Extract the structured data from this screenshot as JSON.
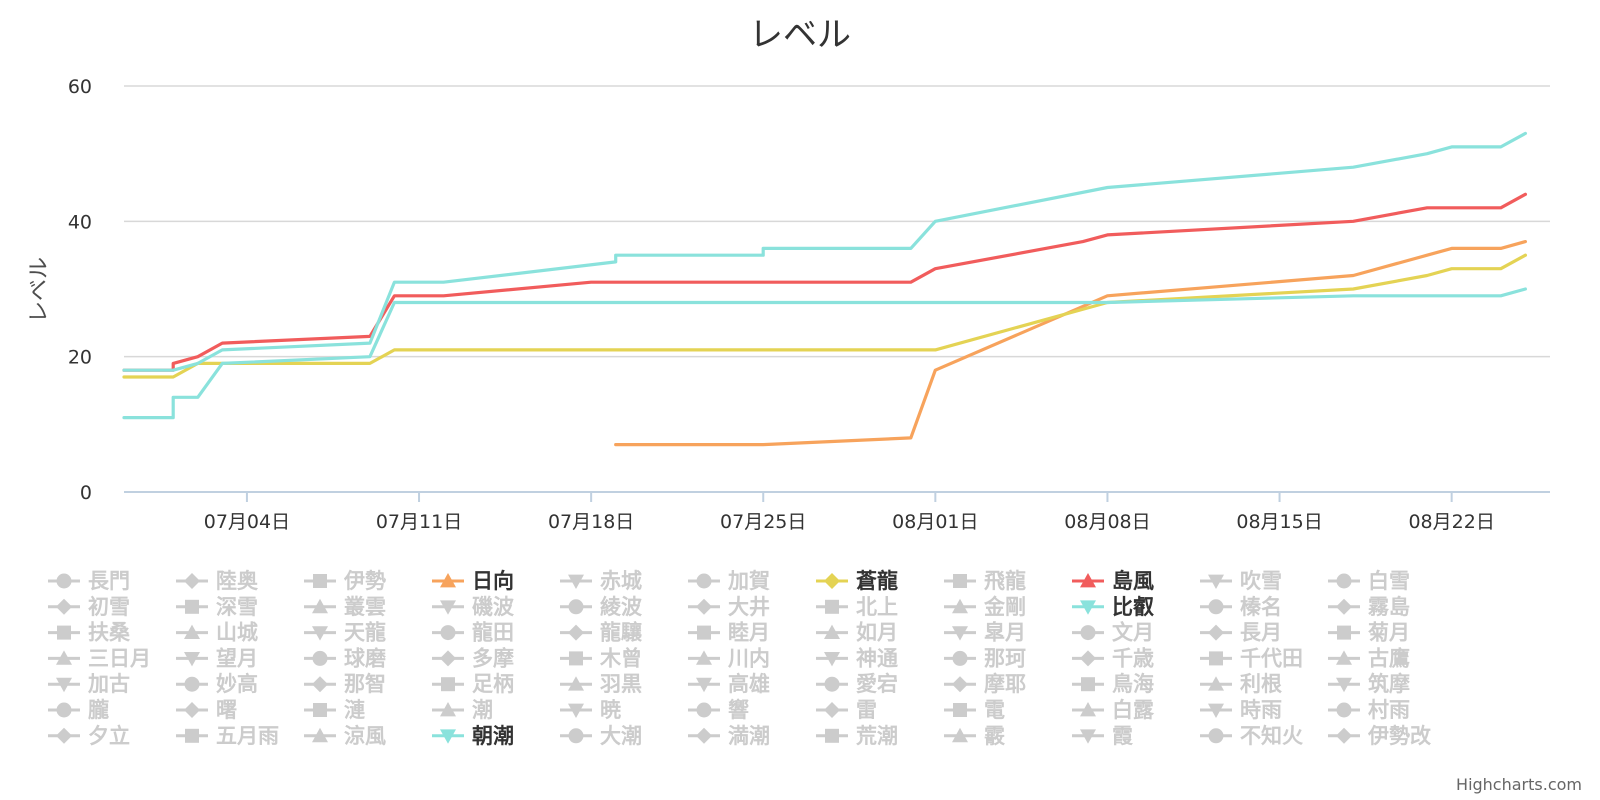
{
  "chart_data": {
    "type": "line",
    "title": "レベル",
    "xlabel": "",
    "ylabel": "レベル",
    "ylim": [
      0,
      60
    ],
    "y_ticks": [
      0,
      20,
      40,
      60
    ],
    "x_range": [
      "2016-06-29",
      "2016-08-26"
    ],
    "x_ticks": [
      {
        "date": "2016-07-04",
        "label": "07月04日"
      },
      {
        "date": "2016-07-11",
        "label": "07月11日"
      },
      {
        "date": "2016-07-18",
        "label": "07月18日"
      },
      {
        "date": "2016-07-25",
        "label": "07月25日"
      },
      {
        "date": "2016-08-01",
        "label": "08月01日"
      },
      {
        "date": "2016-08-08",
        "label": "08月08日"
      },
      {
        "date": "2016-08-15",
        "label": "08月15日"
      },
      {
        "date": "2016-08-22",
        "label": "08月22日"
      }
    ],
    "grid": true,
    "legend_position": "bottom",
    "series": [
      {
        "name": "日向",
        "color": "#f7a35c",
        "marker": "triangle",
        "visible": true,
        "points": [
          [
            "2016-07-19",
            7
          ],
          [
            "2016-07-25",
            7
          ],
          [
            "2016-07-31",
            8
          ],
          [
            "2016-08-01",
            18
          ],
          [
            "2016-08-08",
            29
          ],
          [
            "2016-08-18",
            32
          ],
          [
            "2016-08-21",
            35
          ],
          [
            "2016-08-22",
            36
          ],
          [
            "2016-08-24",
            36
          ],
          [
            "2016-08-25",
            37
          ]
        ]
      },
      {
        "name": "蒼龍",
        "color": "#e4d354",
        "marker": "diamond",
        "visible": true,
        "points": [
          [
            "2016-06-29",
            17
          ],
          [
            "2016-07-01",
            17
          ],
          [
            "2016-07-02",
            19
          ],
          [
            "2016-07-09",
            19
          ],
          [
            "2016-07-10",
            21
          ],
          [
            "2016-08-01",
            21
          ],
          [
            "2016-08-08",
            28
          ],
          [
            "2016-08-18",
            30
          ],
          [
            "2016-08-21",
            32
          ],
          [
            "2016-08-22",
            33
          ],
          [
            "2016-08-24",
            33
          ],
          [
            "2016-08-25",
            35
          ]
        ]
      },
      {
        "name": "島風",
        "color": "#f15c5c",
        "marker": "triangle",
        "visible": true,
        "points": [
          [
            "2016-06-29",
            18
          ],
          [
            "2016-07-01",
            18
          ],
          [
            "2016-07-01",
            19
          ],
          [
            "2016-07-02",
            20
          ],
          [
            "2016-07-03",
            22
          ],
          [
            "2016-07-09",
            23
          ],
          [
            "2016-07-10",
            29
          ],
          [
            "2016-07-12",
            29
          ],
          [
            "2016-07-18",
            31
          ],
          [
            "2016-07-31",
            31
          ],
          [
            "2016-08-01",
            33
          ],
          [
            "2016-08-07",
            37
          ],
          [
            "2016-08-08",
            38
          ],
          [
            "2016-08-18",
            40
          ],
          [
            "2016-08-21",
            42
          ],
          [
            "2016-08-24",
            42
          ],
          [
            "2016-08-25",
            44
          ]
        ]
      },
      {
        "name": "比叡",
        "color": "#8ae2dc",
        "marker": "triangle-down",
        "visible": true,
        "points": [
          [
            "2016-06-29",
            18
          ],
          [
            "2016-07-01",
            18
          ],
          [
            "2016-07-02",
            19
          ],
          [
            "2016-07-03",
            21
          ],
          [
            "2016-07-09",
            22
          ],
          [
            "2016-07-10",
            31
          ],
          [
            "2016-07-12",
            31
          ],
          [
            "2016-07-19",
            34
          ],
          [
            "2016-07-19",
            35
          ],
          [
            "2016-07-25",
            35
          ],
          [
            "2016-07-25",
            36
          ],
          [
            "2016-07-31",
            36
          ],
          [
            "2016-08-01",
            40
          ],
          [
            "2016-08-08",
            45
          ],
          [
            "2016-08-18",
            48
          ],
          [
            "2016-08-21",
            50
          ],
          [
            "2016-08-22",
            51
          ],
          [
            "2016-08-24",
            51
          ],
          [
            "2016-08-25",
            53
          ]
        ]
      },
      {
        "name": "朝潮",
        "color": "#8ae2dc",
        "marker": "triangle-down",
        "visible": true,
        "points": [
          [
            "2016-06-29",
            11
          ],
          [
            "2016-07-01",
            11
          ],
          [
            "2016-07-01",
            14
          ],
          [
            "2016-07-02",
            14
          ],
          [
            "2016-07-03",
            19
          ],
          [
            "2016-07-09",
            20
          ],
          [
            "2016-07-10",
            28
          ],
          [
            "2016-08-08",
            28
          ],
          [
            "2016-08-18",
            29
          ],
          [
            "2016-08-24",
            29
          ],
          [
            "2016-08-25",
            30
          ]
        ]
      }
    ]
  },
  "legend_items": [
    {
      "name": "長門",
      "marker": "circle",
      "active": false
    },
    {
      "name": "陸奥",
      "marker": "diamond",
      "active": false
    },
    {
      "name": "伊勢",
      "marker": "square",
      "active": false
    },
    {
      "name": "日向",
      "marker": "triangle",
      "active": true,
      "color": "#f7a35c"
    },
    {
      "name": "赤城",
      "marker": "triangle-down",
      "active": false
    },
    {
      "name": "加賀",
      "marker": "circle",
      "active": false
    },
    {
      "name": "蒼龍",
      "marker": "diamond",
      "active": true,
      "color": "#e4d354"
    },
    {
      "name": "飛龍",
      "marker": "square",
      "active": false
    },
    {
      "name": "島風",
      "marker": "triangle",
      "active": true,
      "color": "#f15c5c"
    },
    {
      "name": "吹雪",
      "marker": "triangle-down",
      "active": false
    },
    {
      "name": "白雪",
      "marker": "circle",
      "active": false
    },
    {
      "name": "初雪",
      "marker": "diamond",
      "active": false
    },
    {
      "name": "深雪",
      "marker": "square",
      "active": false
    },
    {
      "name": "叢雲",
      "marker": "triangle",
      "active": false
    },
    {
      "name": "磯波",
      "marker": "triangle-down",
      "active": false
    },
    {
      "name": "綾波",
      "marker": "circle",
      "active": false
    },
    {
      "name": "大井",
      "marker": "diamond",
      "active": false
    },
    {
      "name": "北上",
      "marker": "square",
      "active": false
    },
    {
      "name": "金剛",
      "marker": "triangle",
      "active": false
    },
    {
      "name": "比叡",
      "marker": "triangle-down",
      "active": true,
      "color": "#8ae2dc"
    },
    {
      "name": "榛名",
      "marker": "circle",
      "active": false
    },
    {
      "name": "霧島",
      "marker": "diamond",
      "active": false
    },
    {
      "name": "扶桑",
      "marker": "square",
      "active": false
    },
    {
      "name": "山城",
      "marker": "triangle",
      "active": false
    },
    {
      "name": "天龍",
      "marker": "triangle-down",
      "active": false
    },
    {
      "name": "龍田",
      "marker": "circle",
      "active": false
    },
    {
      "name": "龍驤",
      "marker": "diamond",
      "active": false
    },
    {
      "name": "睦月",
      "marker": "square",
      "active": false
    },
    {
      "name": "如月",
      "marker": "triangle",
      "active": false
    },
    {
      "name": "皐月",
      "marker": "triangle-down",
      "active": false
    },
    {
      "name": "文月",
      "marker": "circle",
      "active": false
    },
    {
      "name": "長月",
      "marker": "diamond",
      "active": false
    },
    {
      "name": "菊月",
      "marker": "square",
      "active": false
    },
    {
      "name": "三日月",
      "marker": "triangle",
      "active": false
    },
    {
      "name": "望月",
      "marker": "triangle-down",
      "active": false
    },
    {
      "name": "球磨",
      "marker": "circle",
      "active": false
    },
    {
      "name": "多摩",
      "marker": "diamond",
      "active": false
    },
    {
      "name": "木曾",
      "marker": "square",
      "active": false
    },
    {
      "name": "川内",
      "marker": "triangle",
      "active": false
    },
    {
      "name": "神通",
      "marker": "triangle-down",
      "active": false
    },
    {
      "name": "那珂",
      "marker": "circle",
      "active": false
    },
    {
      "name": "千歳",
      "marker": "diamond",
      "active": false
    },
    {
      "name": "千代田",
      "marker": "square",
      "active": false
    },
    {
      "name": "古鷹",
      "marker": "triangle",
      "active": false
    },
    {
      "name": "加古",
      "marker": "triangle-down",
      "active": false
    },
    {
      "name": "妙高",
      "marker": "circle",
      "active": false
    },
    {
      "name": "那智",
      "marker": "diamond",
      "active": false
    },
    {
      "name": "足柄",
      "marker": "square",
      "active": false
    },
    {
      "name": "羽黒",
      "marker": "triangle",
      "active": false
    },
    {
      "name": "高雄",
      "marker": "triangle-down",
      "active": false
    },
    {
      "name": "愛宕",
      "marker": "circle",
      "active": false
    },
    {
      "name": "摩耶",
      "marker": "diamond",
      "active": false
    },
    {
      "name": "鳥海",
      "marker": "square",
      "active": false
    },
    {
      "name": "利根",
      "marker": "triangle",
      "active": false
    },
    {
      "name": "筑摩",
      "marker": "triangle-down",
      "active": false
    },
    {
      "name": "朧",
      "marker": "circle",
      "active": false
    },
    {
      "name": "曙",
      "marker": "diamond",
      "active": false
    },
    {
      "name": "漣",
      "marker": "square",
      "active": false
    },
    {
      "name": "潮",
      "marker": "triangle",
      "active": false
    },
    {
      "name": "暁",
      "marker": "triangle-down",
      "active": false
    },
    {
      "name": "響",
      "marker": "circle",
      "active": false
    },
    {
      "name": "雷",
      "marker": "diamond",
      "active": false
    },
    {
      "name": "電",
      "marker": "square",
      "active": false
    },
    {
      "name": "白露",
      "marker": "triangle",
      "active": false
    },
    {
      "name": "時雨",
      "marker": "triangle-down",
      "active": false
    },
    {
      "name": "村雨",
      "marker": "circle",
      "active": false
    },
    {
      "name": "夕立",
      "marker": "diamond",
      "active": false
    },
    {
      "name": "五月雨",
      "marker": "square",
      "active": false
    },
    {
      "name": "涼風",
      "marker": "triangle",
      "active": false
    },
    {
      "name": "朝潮",
      "marker": "triangle-down",
      "active": true,
      "color": "#8ae2dc"
    },
    {
      "name": "大潮",
      "marker": "circle",
      "active": false
    },
    {
      "name": "満潮",
      "marker": "diamond",
      "active": false
    },
    {
      "name": "荒潮",
      "marker": "square",
      "active": false
    },
    {
      "name": "霰",
      "marker": "triangle",
      "active": false
    },
    {
      "name": "霞",
      "marker": "triangle-down",
      "active": false
    },
    {
      "name": "不知火",
      "marker": "circle",
      "active": false
    },
    {
      "name": "伊勢改",
      "marker": "diamond",
      "active": false
    }
  ],
  "credits": "Highcharts.com",
  "colors": {
    "inactive": "#cccccc",
    "active_text": "#333333",
    "grid": "#d8d8d8",
    "axis": "#c0d0e0"
  }
}
